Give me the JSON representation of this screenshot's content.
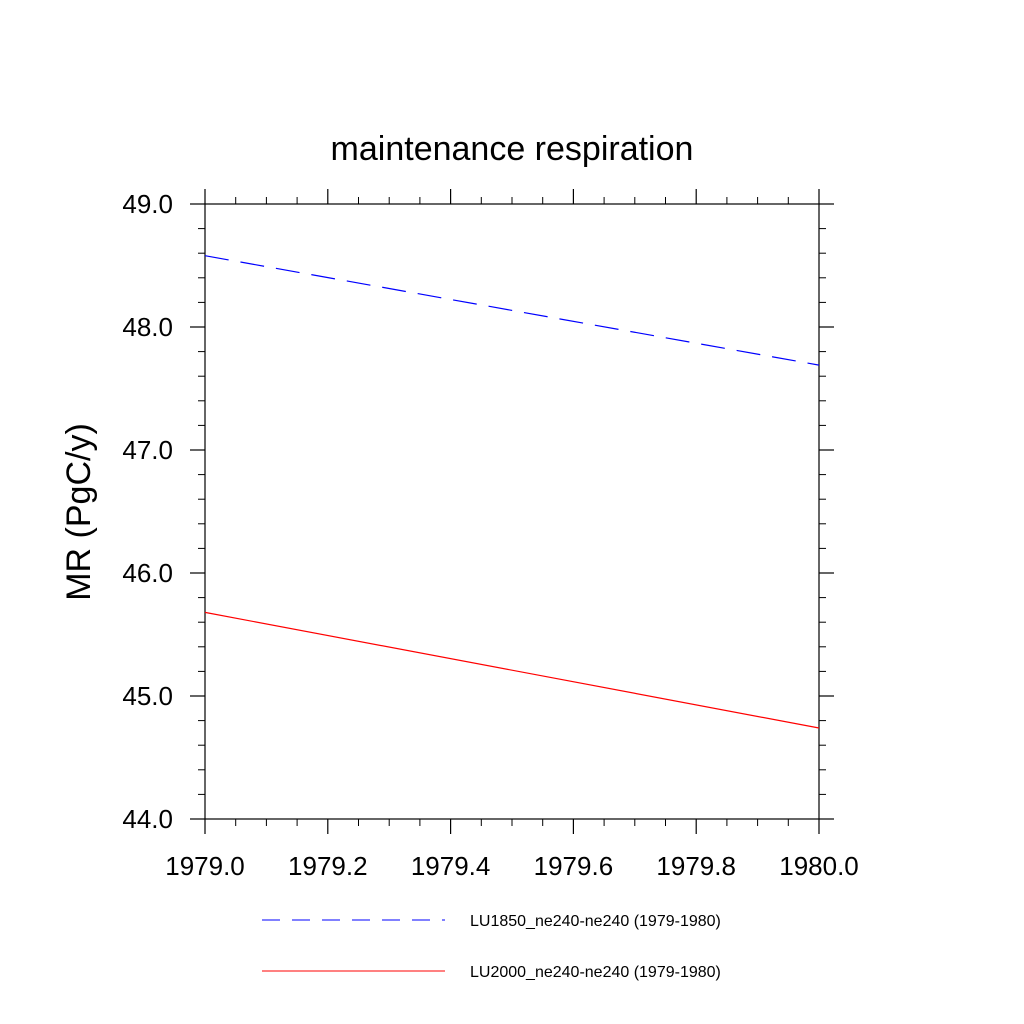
{
  "chart_data": {
    "type": "line",
    "title": "maintenance respiration",
    "xlabel": "",
    "ylabel": "MR  (PgC/y)",
    "xlim": [
      1979.0,
      1980.0
    ],
    "ylim": [
      44.0,
      49.0
    ],
    "x_ticks": [
      "1979.0",
      "1979.2",
      "1979.4",
      "1979.6",
      "1979.8",
      "1980.0"
    ],
    "y_ticks": [
      "44.0",
      "45.0",
      "46.0",
      "47.0",
      "48.0",
      "49.0"
    ],
    "grid": false,
    "legend_position": "bottom",
    "series": [
      {
        "name": "LU1850_ne240-ne240 (1979-1980)",
        "color": "#0000ff",
        "dash": "dashed",
        "x": [
          1979.0,
          1980.0
        ],
        "y": [
          48.58,
          47.69
        ]
      },
      {
        "name": "LU2000_ne240-ne240 (1979-1980)",
        "color": "#ff0000",
        "dash": "solid",
        "x": [
          1979.0,
          1980.0
        ],
        "y": [
          45.68,
          44.74
        ]
      }
    ]
  }
}
